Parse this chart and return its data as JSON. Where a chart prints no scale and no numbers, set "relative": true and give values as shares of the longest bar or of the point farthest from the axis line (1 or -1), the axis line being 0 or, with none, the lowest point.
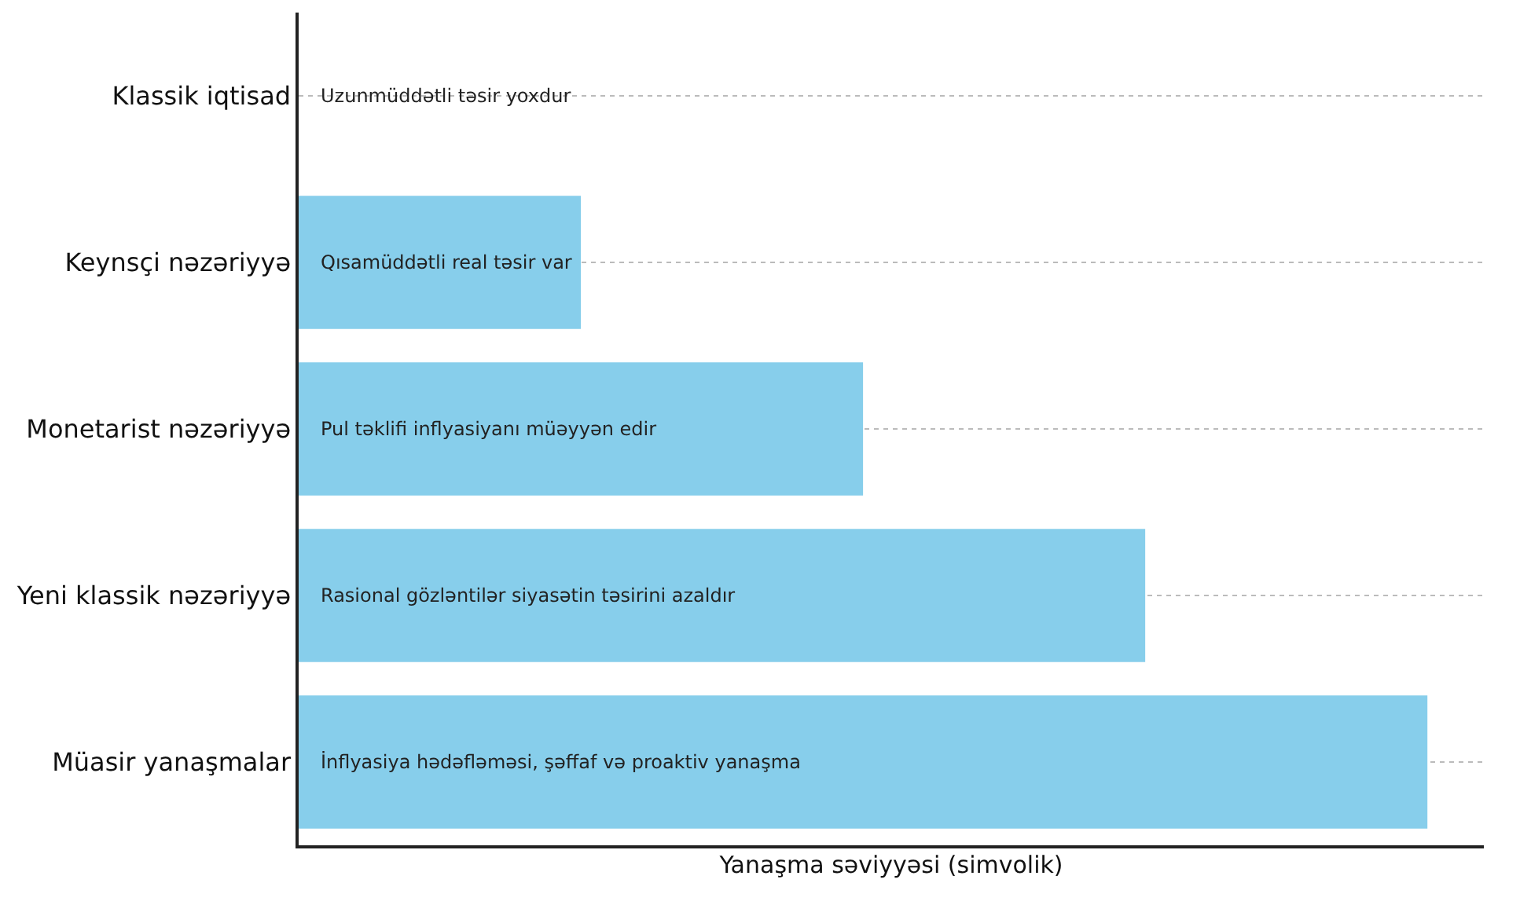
{
  "chart_data": {
    "type": "bar",
    "orientation": "horizontal",
    "relative": true,
    "categories": [
      "Klassik iqtisad",
      "Keynsçi nəzəriyyə",
      "Monetarist nəzəriyyə",
      "Yeni klassik nəzəriyyə",
      "Müasir yanaşmalar"
    ],
    "values": [
      0,
      0.25,
      0.5,
      0.75,
      1
    ],
    "color": "#87ceeb",
    "xlabel": "Yanaşma səviyyəsi (simvolik)",
    "annotations": [
      "Uzunmüddətli təsir yoxdur",
      "Qısamüddətli real təsir var",
      "Pul təklifi inflyasiyanı müəyyən edir",
      "Rasional gözləntilər siyasətin təsirini azaldır",
      "İnflyasiya hədəfləməsi, şəffaf və proaktiv yanaşma"
    ],
    "grid": "y",
    "tick_labels": "y",
    "legend": false
  }
}
